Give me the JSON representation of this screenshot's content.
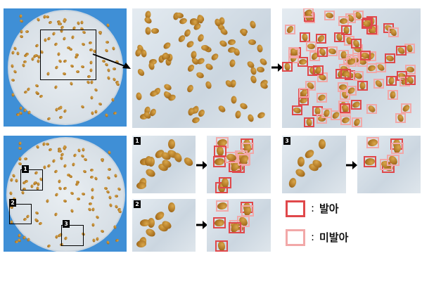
{
  "panels": {
    "bottom_labels": [
      "1",
      "2",
      "3"
    ]
  },
  "legend": {
    "items": [
      {
        "label": "발아",
        "separator": ":",
        "color": "#e0484b"
      },
      {
        "label": "미발아",
        "separator": ":",
        "color": "#f2a8a8"
      }
    ]
  },
  "colors": {
    "background_blue": "#3f8fd6",
    "germinated": "#e0484b",
    "non_germinated": "#f2a8a8"
  }
}
